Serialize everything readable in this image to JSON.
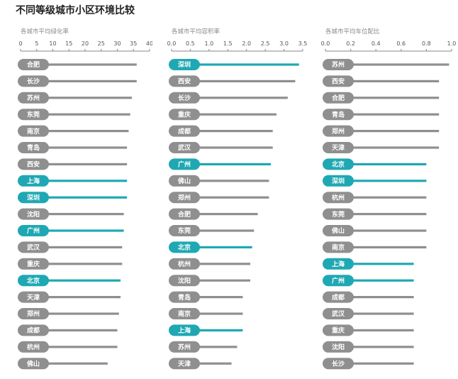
{
  "page": {
    "title": "不同等级城市小区环境比较"
  },
  "colors": {
    "normal": "#8f8f8f",
    "highlight": "#1fa8b3",
    "axis": "#888888"
  },
  "chart_data": [
    {
      "type": "bar",
      "orientation": "horizontal",
      "title": "各城市平均绿化率",
      "xlim": [
        0,
        40
      ],
      "ticks": [
        0,
        5,
        10,
        15,
        20,
        25,
        30,
        35,
        40
      ],
      "categories": [
        "合肥",
        "长沙",
        "苏州",
        "东莞",
        "南京",
        "青岛",
        "西安",
        "上海",
        "深圳",
        "沈阳",
        "广州",
        "武汉",
        "重庆",
        "北京",
        "天津",
        "郑州",
        "成都",
        "杭州",
        "佛山"
      ],
      "values": [
        36,
        36,
        34.5,
        34,
        33.5,
        33,
        33,
        33,
        33,
        32,
        32,
        31.5,
        31.5,
        31,
        31,
        30.5,
        30,
        30,
        27
      ],
      "highlight": [
        "上海",
        "深圳",
        "广州",
        "北京"
      ]
    },
    {
      "type": "bar",
      "orientation": "horizontal",
      "title": "各城市平均容积率",
      "xlim": [
        0,
        3.5
      ],
      "ticks": [
        0.0,
        0.5,
        1.0,
        1.5,
        2.0,
        2.5,
        3.0,
        3.5
      ],
      "tick_labels": [
        "0.0",
        "0.5",
        "1.0",
        "1.5",
        "2.0",
        "2.5",
        "3.0",
        "3.5"
      ],
      "categories": [
        "深圳",
        "西安",
        "长沙",
        "重庆",
        "成都",
        "武汉",
        "广州",
        "佛山",
        "郑州",
        "合肥",
        "东莞",
        "北京",
        "杭州",
        "沈阳",
        "青岛",
        "南京",
        "上海",
        "苏州",
        "天津"
      ],
      "values": [
        3.4,
        3.3,
        3.1,
        2.8,
        2.7,
        2.7,
        2.65,
        2.6,
        2.6,
        2.3,
        2.2,
        2.15,
        2.1,
        2.1,
        1.9,
        1.9,
        1.9,
        1.75,
        1.6
      ],
      "highlight": [
        "深圳",
        "广州",
        "北京",
        "上海"
      ]
    },
    {
      "type": "bar",
      "orientation": "horizontal",
      "title": "各城市平均车位配比",
      "xlim": [
        0,
        1.0
      ],
      "ticks": [
        0.0,
        0.2,
        0.4,
        0.6,
        0.8,
        1.0
      ],
      "tick_labels": [
        "0.0",
        "0.2",
        "0.4",
        "0.6",
        "0.8",
        "1.0"
      ],
      "categories": [
        "苏州",
        "西安",
        "合肥",
        "青岛",
        "郑州",
        "天津",
        "北京",
        "深圳",
        "杭州",
        "东莞",
        "佛山",
        "南京",
        "上海",
        "广州",
        "成都",
        "武汉",
        "重庆",
        "沈阳",
        "长沙"
      ],
      "values": [
        0.98,
        0.9,
        0.9,
        0.9,
        0.9,
        0.9,
        0.8,
        0.8,
        0.8,
        0.8,
        0.8,
        0.8,
        0.7,
        0.7,
        0.7,
        0.7,
        0.7,
        0.7,
        0.7
      ],
      "highlight": [
        "北京",
        "深圳",
        "上海",
        "广州"
      ]
    }
  ]
}
